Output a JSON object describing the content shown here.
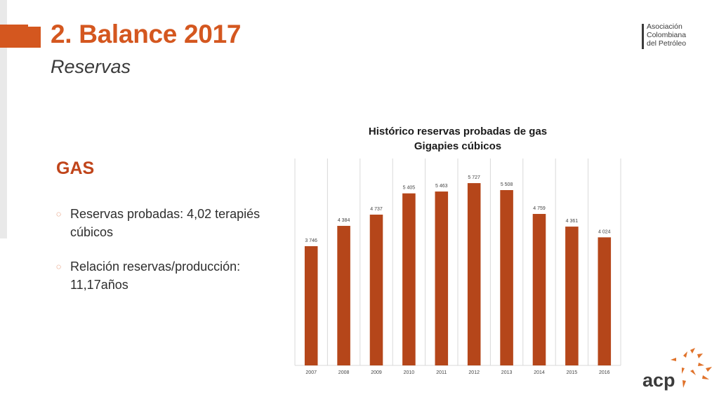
{
  "slide": {
    "title": "2. Balance 2017",
    "subtitle": "Reservas",
    "section_title": "GAS",
    "bullets": [
      "Reservas probadas: 4,02 terapiés cúbicos",
      "Relación reservas/producción: 11,17años"
    ]
  },
  "org_logo": {
    "lines": [
      "Asociación",
      "Colombiana",
      "del Petróleo"
    ]
  },
  "acp_logo": {
    "text": "acp"
  },
  "colors": {
    "accent": "#d4571f",
    "bar": "#b5461a",
    "heading": "#c0451b"
  },
  "chart_data": {
    "type": "bar",
    "title": "Histórico reservas probadas de gas",
    "subtitle": "Gigapies cúbicos",
    "categories": [
      "2007",
      "2008",
      "2009",
      "2010",
      "2011",
      "2012",
      "2013",
      "2014",
      "2015",
      "2016"
    ],
    "values": [
      3746,
      4384,
      4737,
      5405,
      5463,
      5727,
      5508,
      4759,
      4361,
      4024
    ],
    "value_labels": [
      "3 746",
      "4 384",
      "4 737",
      "5 405",
      "5 463",
      "5 727",
      "5 508",
      "4 759",
      "4 361",
      "4 024"
    ],
    "ylim": [
      0,
      6500
    ],
    "grid": "vertical",
    "legend": "none"
  }
}
